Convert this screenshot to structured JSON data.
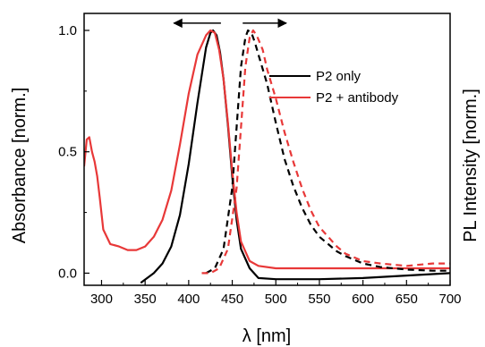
{
  "chart_data": {
    "type": "line",
    "xlabel": "λ [nm]",
    "ylabel_left": "Absorbance [norm.]",
    "ylabel_right": "PL Intensity [norm.]",
    "xlim": [
      280,
      700
    ],
    "ylim": [
      -0.05,
      1.07
    ],
    "x_ticks": [
      300,
      350,
      400,
      450,
      500,
      550,
      600,
      650,
      700
    ],
    "y_ticks": [
      0.0,
      0.5,
      1.0
    ],
    "x_tick_labels": [
      "300",
      "350",
      "400",
      "450",
      "500",
      "550",
      "600",
      "650",
      "700"
    ],
    "y_tick_labels": [
      "0.0",
      "0.5",
      "1.0"
    ],
    "legend_position": "top-right",
    "annotations": [
      {
        "type": "arrow",
        "direction": "left",
        "x_from": 437,
        "x_to": 383,
        "y": 1.03
      },
      {
        "type": "arrow",
        "direction": "right",
        "x_from": 462,
        "x_to": 512,
        "y": 1.03
      }
    ],
    "series": [
      {
        "name": "P2 only",
        "kind": "absorbance",
        "color": "#000000",
        "style": "solid",
        "x": [
          345,
          360,
          370,
          380,
          390,
          400,
          410,
          420,
          425,
          428,
          432,
          436,
          440,
          445,
          450,
          455,
          460,
          470,
          480,
          500,
          550,
          600,
          650,
          700
        ],
        "y": [
          -0.04,
          0.0,
          0.04,
          0.11,
          0.24,
          0.45,
          0.7,
          0.93,
          0.99,
          1.0,
          0.98,
          0.91,
          0.8,
          0.61,
          0.4,
          0.22,
          0.1,
          0.02,
          -0.02,
          -0.025,
          -0.025,
          -0.02,
          -0.01,
          0.0
        ]
      },
      {
        "name": "P2 + antibody",
        "kind": "absorbance",
        "color": "#e83838",
        "style": "solid",
        "x": [
          280,
          283,
          286,
          289,
          292,
          295,
          298,
          302,
          310,
          320,
          330,
          340,
          350,
          360,
          370,
          380,
          390,
          400,
          410,
          420,
          425,
          430,
          435,
          440,
          445,
          450,
          455,
          460,
          470,
          480,
          500,
          550,
          600,
          650,
          700
        ],
        "y": [
          0.44,
          0.55,
          0.56,
          0.5,
          0.46,
          0.4,
          0.31,
          0.18,
          0.12,
          0.11,
          0.095,
          0.095,
          0.11,
          0.15,
          0.22,
          0.34,
          0.53,
          0.74,
          0.9,
          0.98,
          1.0,
          0.99,
          0.92,
          0.8,
          0.62,
          0.42,
          0.25,
          0.13,
          0.05,
          0.03,
          0.02,
          0.02,
          0.02,
          0.02,
          0.02
        ]
      },
      {
        "name": "P2 only",
        "kind": "photoluminescence",
        "color": "#000000",
        "style": "dashed",
        "x": [
          420,
          430,
          440,
          450,
          455,
          460,
          465,
          468,
          472,
          476,
          480,
          490,
          500,
          510,
          520,
          530,
          540,
          550,
          560,
          570,
          580,
          600,
          620,
          650,
          680,
          700
        ],
        "y": [
          0.0,
          0.02,
          0.1,
          0.35,
          0.6,
          0.85,
          0.97,
          1.0,
          0.99,
          0.95,
          0.9,
          0.78,
          0.62,
          0.47,
          0.36,
          0.27,
          0.2,
          0.15,
          0.12,
          0.09,
          0.07,
          0.04,
          0.025,
          0.015,
          0.01,
          0.01
        ]
      },
      {
        "name": "P2 + antibody",
        "kind": "photoluminescence",
        "color": "#e83838",
        "style": "dashed",
        "x": [
          415,
          425,
          435,
          445,
          455,
          460,
          465,
          470,
          474,
          478,
          485,
          490,
          500,
          510,
          520,
          530,
          540,
          550,
          560,
          570,
          580,
          600,
          620,
          650,
          680,
          700
        ],
        "y": [
          0.0,
          0.0,
          0.02,
          0.1,
          0.35,
          0.6,
          0.85,
          0.97,
          1.0,
          0.98,
          0.92,
          0.84,
          0.72,
          0.58,
          0.46,
          0.35,
          0.26,
          0.19,
          0.15,
          0.11,
          0.08,
          0.05,
          0.04,
          0.03,
          0.04,
          0.04
        ]
      }
    ]
  }
}
